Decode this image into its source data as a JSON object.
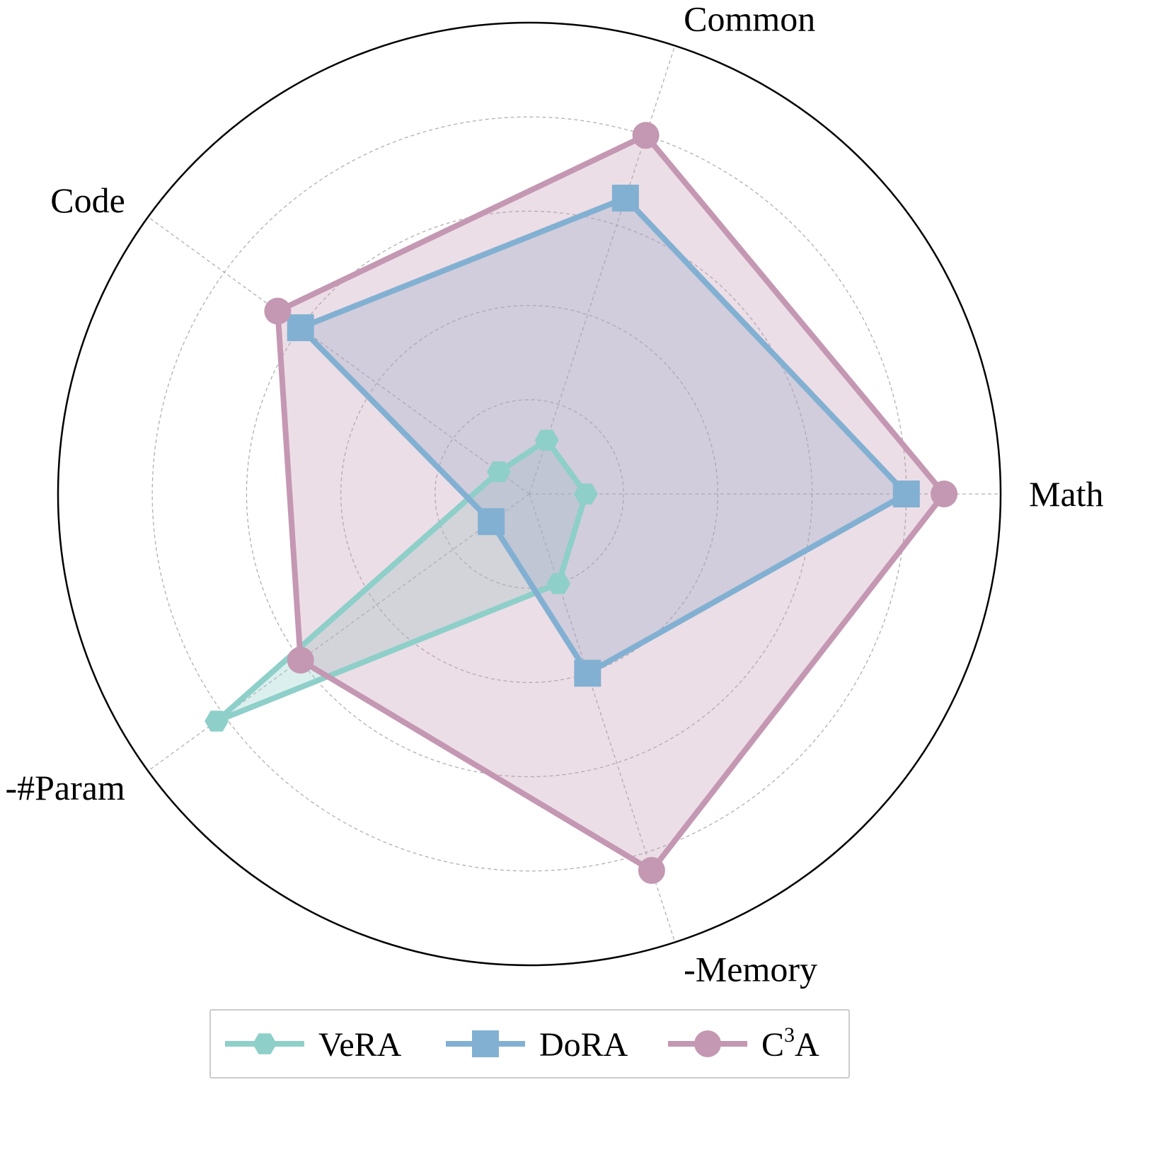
{
  "chart_data": {
    "type": "radar",
    "axes": [
      "Math",
      "Common",
      "Code",
      "-#Param",
      "-Memory"
    ],
    "rlim": [
      0,
      5
    ],
    "rings": [
      1,
      2,
      3,
      4,
      5
    ],
    "grid": true,
    "legend_position": "bottom",
    "series": [
      {
        "name": "VeRA",
        "label_base": "VeRA",
        "label_sup": "",
        "color": "#8ecfc9",
        "marker": "hexagon",
        "values": [
          0.6,
          0.6,
          0.4,
          4.1,
          1.0
        ]
      },
      {
        "name": "DoRA",
        "label_base": "DoRA",
        "label_sup": "",
        "color": "#82b0d2",
        "marker": "square",
        "values": [
          4.0,
          3.3,
          3.0,
          0.5,
          2.0
        ]
      },
      {
        "name": "C³A",
        "label_base": "C",
        "label_sup": "3",
        "label_tail": "A",
        "color": "#c497b2",
        "marker": "circle",
        "values": [
          4.4,
          4.0,
          3.3,
          3.0,
          4.2
        ]
      }
    ]
  }
}
